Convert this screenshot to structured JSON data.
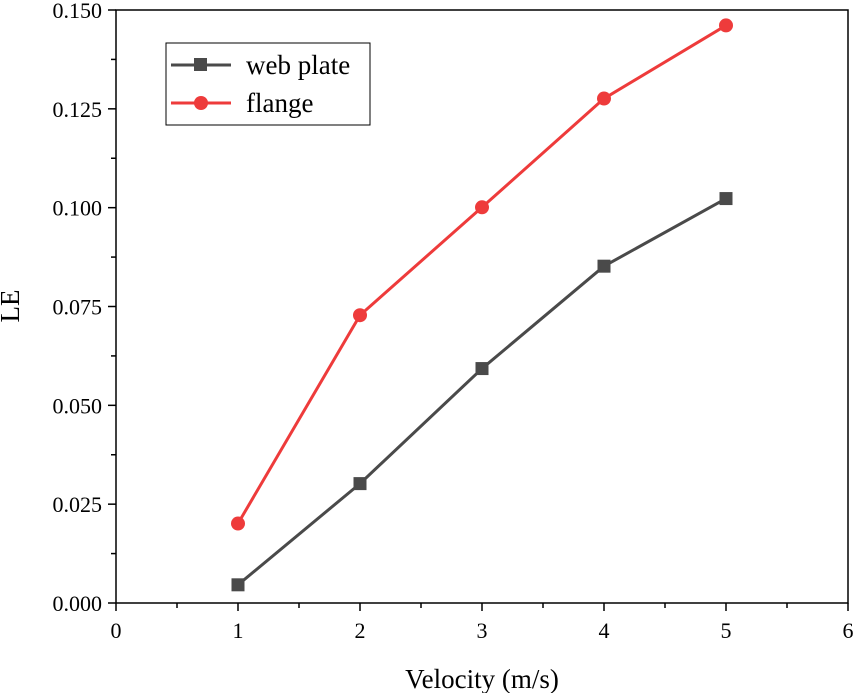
{
  "chart_data": {
    "type": "line",
    "xlabel": "Velocity (m/s)",
    "ylabel": "LE",
    "xlim": [
      0,
      6
    ],
    "ylim": [
      0,
      0.15
    ],
    "x_ticks": [
      "0",
      "1",
      "2",
      "3",
      "4",
      "5",
      "6"
    ],
    "y_ticks": [
      "0.000",
      "0.025",
      "0.050",
      "0.075",
      "0.100",
      "0.125",
      "0.150"
    ],
    "x_tick_values": [
      0,
      1,
      2,
      3,
      4,
      5,
      6
    ],
    "y_tick_values": [
      0,
      0.025,
      0.05,
      0.075,
      0.1,
      0.125,
      0.15
    ],
    "grid": false,
    "legend_position": "top-left",
    "x": [
      1,
      2,
      3,
      4,
      5
    ],
    "series": [
      {
        "name": "web plate",
        "marker": "square",
        "color": "#4a4a4a",
        "values": [
          0.0046,
          0.0302,
          0.0593,
          0.0852,
          0.1023
        ]
      },
      {
        "name": "flange",
        "marker": "circle",
        "color": "#ee3b3b",
        "values": [
          0.0201,
          0.0728,
          0.1001,
          0.1276,
          0.1461
        ]
      }
    ]
  }
}
